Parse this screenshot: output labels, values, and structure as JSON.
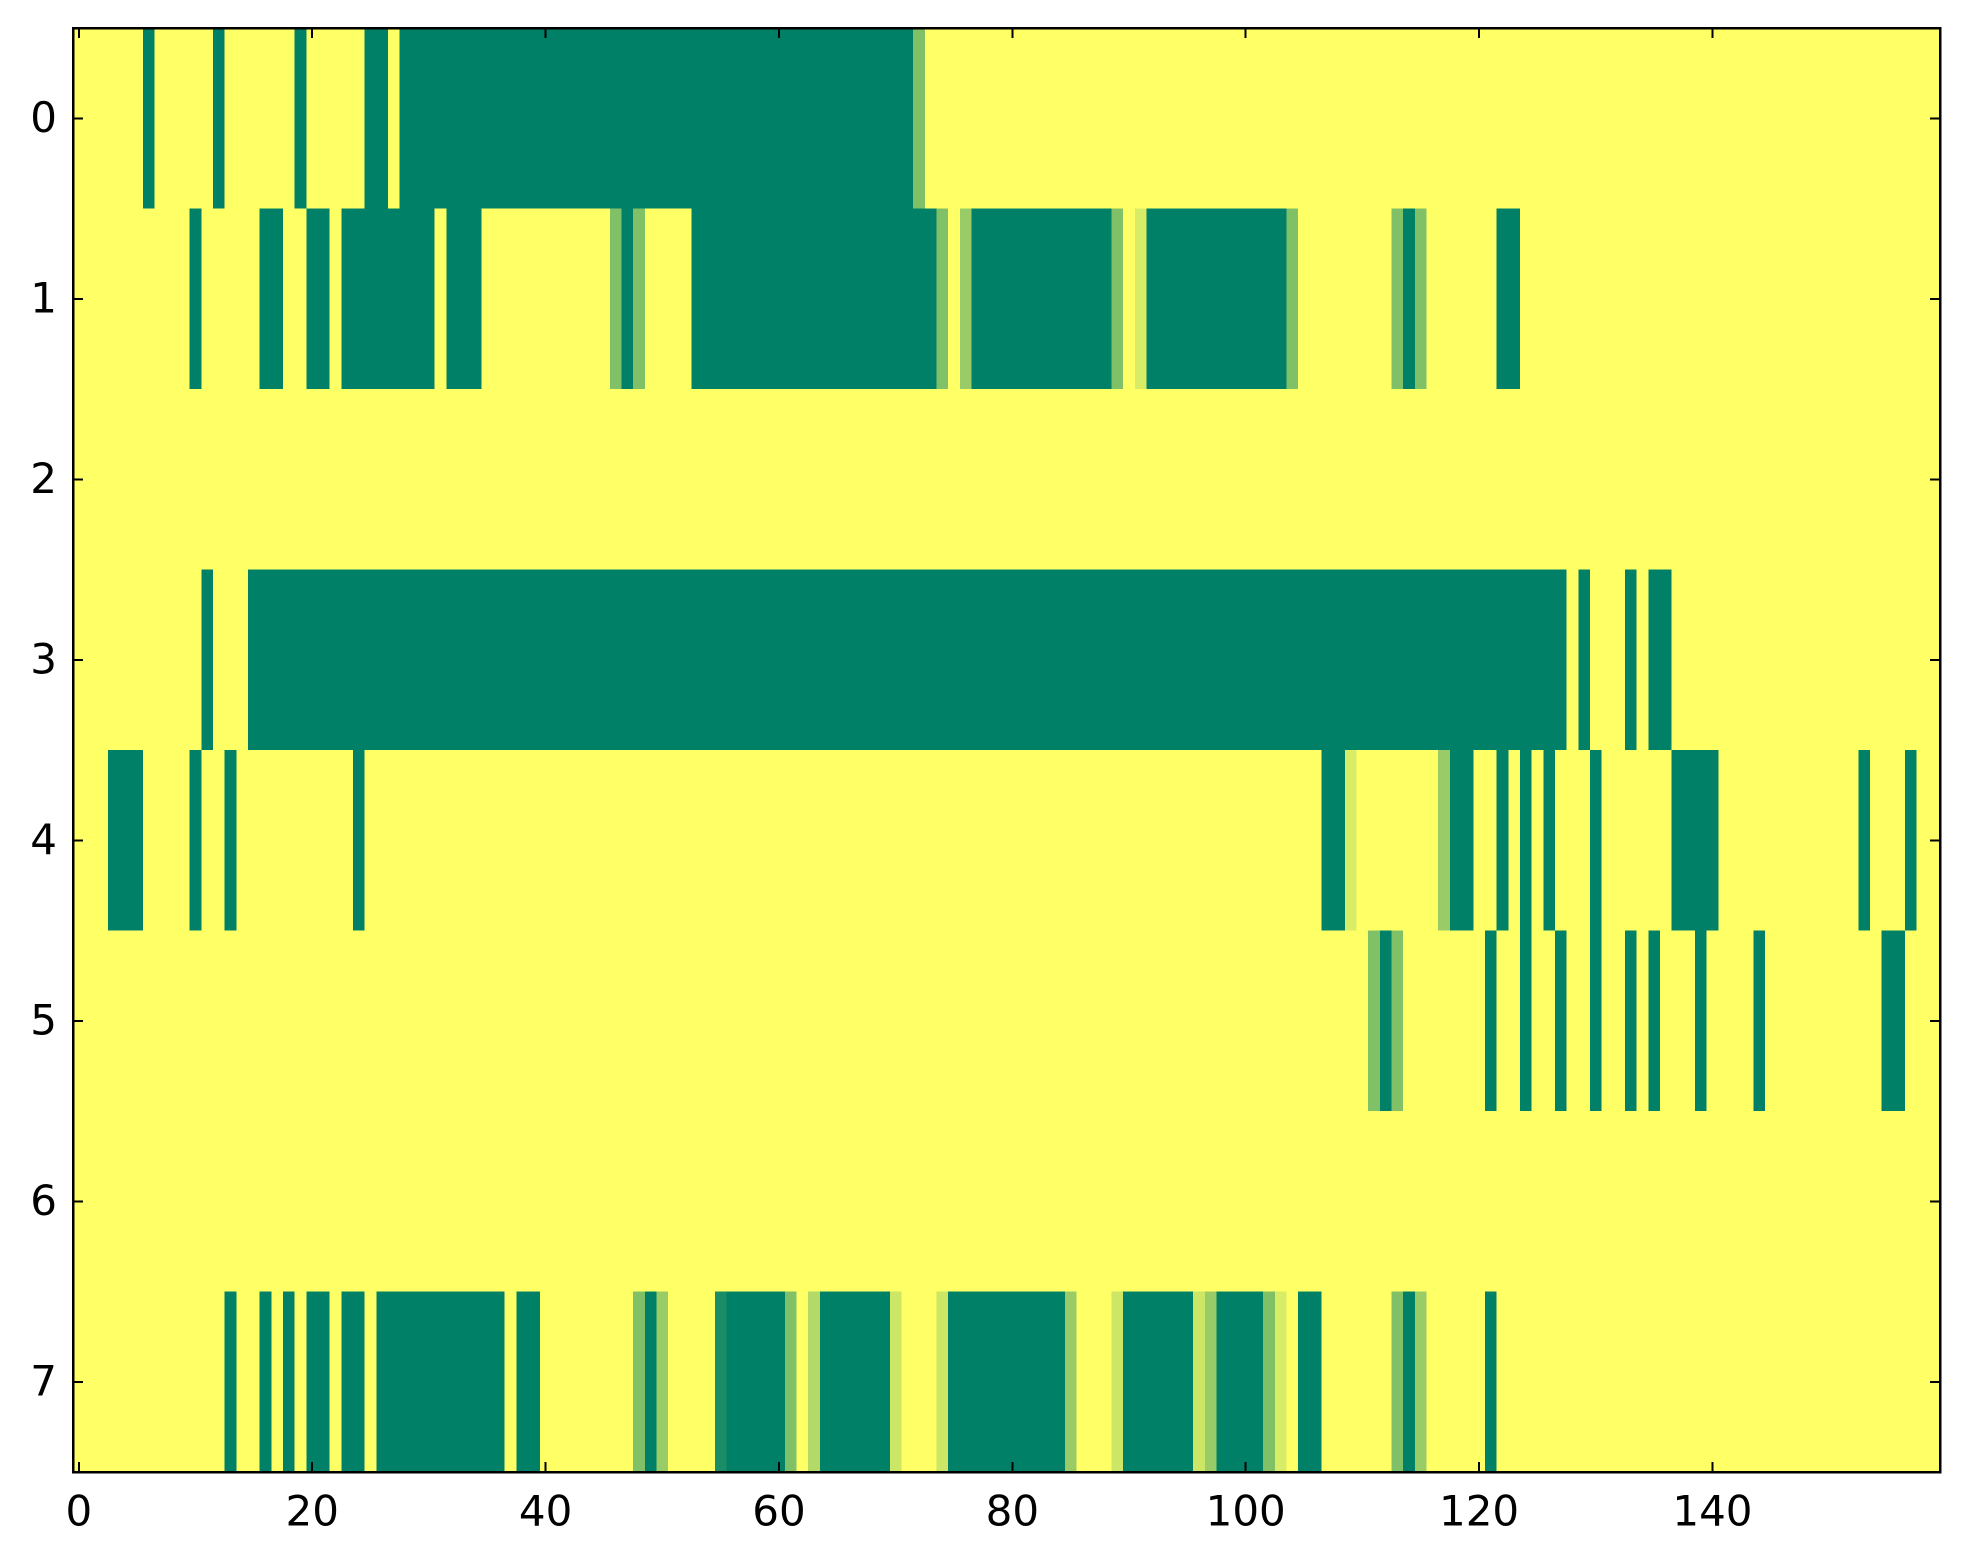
{
  "chart_data": {
    "type": "heatmap",
    "values": [
      [
        1,
        1,
        1,
        1,
        1,
        1,
        0,
        1,
        1,
        1,
        1,
        1,
        0,
        1,
        1,
        1,
        1,
        1,
        1,
        0,
        1,
        1,
        1,
        1,
        1,
        0,
        0,
        1,
        0,
        0,
        0,
        0,
        0,
        0,
        0,
        0,
        0,
        0,
        0,
        0,
        0,
        0,
        0,
        0,
        0,
        0,
        0,
        0,
        0,
        0,
        0,
        0,
        0,
        0,
        0,
        0,
        0,
        0,
        0,
        0,
        0,
        0,
        0,
        0,
        0,
        0,
        0,
        0,
        0,
        0,
        0,
        0,
        0.5,
        1,
        1,
        1,
        1,
        1,
        1,
        1,
        1,
        1,
        1,
        1,
        1,
        1,
        1,
        1,
        1,
        1,
        1,
        1,
        1,
        1,
        1,
        1,
        1,
        1,
        1,
        1,
        1,
        1,
        1,
        1,
        1,
        1,
        1,
        1,
        1,
        1,
        1,
        1,
        1,
        1,
        1,
        1,
        1,
        1,
        1,
        1,
        1,
        1,
        1,
        1,
        1,
        1,
        1,
        1,
        1,
        1,
        1,
        1,
        1,
        1,
        1,
        1,
        1,
        1,
        1,
        1,
        1,
        1,
        1,
        1,
        1,
        1,
        1,
        1,
        1,
        1,
        1,
        1,
        1,
        1,
        1,
        1,
        1,
        1,
        1,
        1
      ],
      [
        1,
        1,
        1,
        1,
        1,
        1,
        1,
        1,
        1,
        1,
        0,
        1,
        1,
        1,
        1,
        1,
        0,
        0,
        1,
        1,
        0,
        0,
        1,
        0,
        0,
        0,
        0,
        0,
        0,
        0,
        0,
        1,
        0,
        0,
        0,
        1,
        1,
        1,
        1,
        1,
        1,
        1,
        1,
        1,
        1,
        1,
        0.5,
        0,
        0.5,
        1,
        1,
        1,
        1,
        0,
        0,
        0,
        0,
        0,
        0,
        0,
        0,
        0,
        0,
        0,
        0,
        0,
        0,
        0,
        0,
        0,
        0,
        0,
        0,
        0,
        0.5,
        1,
        0.6,
        0,
        0,
        0,
        0,
        0,
        0,
        0,
        0,
        0,
        0,
        0,
        0,
        0.5,
        1,
        0.85,
        0,
        0,
        0,
        0,
        0,
        0,
        0,
        0,
        0,
        0,
        0,
        0,
        0.5,
        1,
        1,
        1,
        1,
        1,
        1,
        1,
        1,
        0.5,
        0,
        0.5,
        1,
        1,
        1,
        1,
        1,
        1,
        0,
        0,
        1,
        1,
        1,
        1,
        1,
        1,
        1,
        1,
        1,
        1,
        1,
        1,
        1,
        1,
        1,
        1,
        1,
        1,
        1,
        1,
        1,
        1,
        1,
        1,
        1,
        1,
        1,
        1,
        1,
        1,
        1,
        1,
        1,
        1,
        1,
        1
      ],
      [
        1,
        1,
        1,
        1,
        1,
        1,
        1,
        1,
        1,
        1,
        1,
        1,
        1,
        1,
        1,
        1,
        1,
        1,
        1,
        1,
        1,
        1,
        1,
        1,
        1,
        1,
        1,
        1,
        1,
        1,
        1,
        1,
        1,
        1,
        1,
        1,
        1,
        1,
        1,
        1,
        1,
        1,
        1,
        1,
        1,
        1,
        1,
        1,
        1,
        1,
        1,
        1,
        1,
        1,
        1,
        1,
        1,
        1,
        1,
        1,
        1,
        1,
        1,
        1,
        1,
        1,
        1,
        1,
        1,
        1,
        1,
        1,
        1,
        1,
        1,
        1,
        1,
        1,
        1,
        1,
        1,
        1,
        1,
        1,
        1,
        1,
        1,
        1,
        1,
        1,
        1,
        1,
        1,
        1,
        1,
        1,
        1,
        1,
        1,
        1,
        1,
        1,
        1,
        1,
        1,
        1,
        1,
        1,
        1,
        1,
        1,
        1,
        1,
        1,
        1,
        1,
        1,
        1,
        1,
        1,
        1,
        1,
        1,
        1,
        1,
        1,
        1,
        1,
        1,
        1,
        1,
        1,
        1,
        1,
        1,
        1,
        1,
        1,
        1,
        1,
        1,
        1,
        1,
        1,
        1,
        1,
        1,
        1,
        1,
        1,
        1,
        1,
        1,
        1,
        1,
        1,
        1,
        1,
        1,
        1
      ],
      [
        1,
        1,
        1,
        1,
        1,
        1,
        1,
        1,
        1,
        1,
        1,
        0,
        1,
        1,
        1,
        0,
        0,
        0,
        0,
        0,
        0,
        0,
        0,
        0,
        0,
        0,
        0,
        0,
        0,
        0,
        0,
        0,
        0,
        0,
        0,
        0,
        0,
        0,
        0,
        0,
        0,
        0,
        0,
        0,
        0,
        0,
        0,
        0,
        0,
        0,
        0,
        0,
        0,
        0,
        0,
        0,
        0,
        0,
        0,
        0,
        0,
        0,
        0,
        0,
        0,
        0,
        0,
        0,
        0,
        0,
        0,
        0,
        0,
        0,
        0,
        0,
        0,
        0,
        0,
        0,
        0,
        0,
        0,
        0,
        0,
        0,
        0,
        0,
        0,
        0,
        0,
        0,
        0,
        0,
        0,
        0,
        0,
        0,
        0,
        0,
        0,
        0,
        0,
        0,
        0,
        0,
        0,
        0,
        0,
        0,
        0,
        0,
        0,
        0,
        0,
        0,
        0,
        0,
        0,
        0,
        0,
        0,
        0,
        0,
        0,
        0,
        0,
        0,
        1,
        0,
        1,
        1,
        1,
        0,
        1,
        0,
        0,
        1,
        1,
        1,
        1,
        1,
        1,
        1,
        1,
        1,
        1,
        1,
        1,
        1,
        1,
        1,
        1,
        1,
        1,
        1,
        1,
        1,
        1,
        1
      ],
      [
        1,
        1,
        1,
        0,
        0,
        0,
        1,
        1,
        1,
        1,
        0,
        1,
        1,
        0,
        1,
        1,
        1,
        1,
        1,
        1,
        1,
        1,
        1,
        1,
        0,
        1,
        1,
        1,
        1,
        1,
        1,
        1,
        1,
        1,
        1,
        1,
        1,
        1,
        1,
        1,
        1,
        1,
        1,
        1,
        1,
        1,
        1,
        1,
        1,
        1,
        1,
        1,
        1,
        1,
        1,
        1,
        1,
        1,
        1,
        1,
        1,
        1,
        1,
        1,
        1,
        1,
        1,
        1,
        1,
        1,
        1,
        1,
        1,
        1,
        1,
        1,
        1,
        1,
        1,
        1,
        1,
        1,
        1,
        1,
        1,
        1,
        1,
        1,
        1,
        1,
        1,
        1,
        1,
        1,
        1,
        1,
        1,
        1,
        1,
        1,
        1,
        1,
        1,
        1,
        1,
        1,
        1,
        0,
        0,
        0.85,
        1,
        1,
        1,
        1,
        1,
        1,
        1,
        0.6,
        0,
        0,
        1,
        1,
        0,
        1,
        0,
        1,
        0,
        1,
        1,
        1,
        0,
        1,
        1,
        1,
        1,
        1,
        1,
        0,
        0,
        0,
        0,
        1,
        1,
        1,
        1,
        1,
        1,
        1,
        1,
        1,
        1,
        1,
        1,
        0,
        1,
        1,
        1,
        0,
        1,
        1
      ],
      [
        1,
        1,
        1,
        1,
        1,
        1,
        1,
        1,
        1,
        1,
        1,
        1,
        1,
        1,
        1,
        1,
        1,
        1,
        1,
        1,
        1,
        1,
        1,
        1,
        1,
        1,
        1,
        1,
        1,
        1,
        1,
        1,
        1,
        1,
        1,
        1,
        1,
        1,
        1,
        1,
        1,
        1,
        1,
        1,
        1,
        1,
        1,
        1,
        1,
        1,
        1,
        1,
        1,
        1,
        1,
        1,
        1,
        1,
        1,
        1,
        1,
        1,
        1,
        1,
        1,
        1,
        1,
        1,
        1,
        1,
        1,
        1,
        1,
        1,
        1,
        1,
        1,
        1,
        1,
        1,
        1,
        1,
        1,
        1,
        1,
        1,
        1,
        1,
        1,
        1,
        1,
        1,
        1,
        1,
        1,
        1,
        1,
        1,
        1,
        1,
        1,
        1,
        1,
        1,
        1,
        1,
        1,
        1,
        1,
        1,
        1,
        0.5,
        0,
        0.5,
        1,
        1,
        1,
        1,
        1,
        1,
        1,
        0,
        1,
        1,
        0,
        1,
        1,
        0,
        1,
        1,
        0,
        1,
        1,
        0,
        1,
        0,
        1,
        1,
        1,
        0,
        1,
        1,
        1,
        1,
        0,
        1,
        1,
        1,
        1,
        1,
        1,
        1,
        1,
        1,
        1,
        0,
        0,
        1,
        1,
        1
      ],
      [
        1,
        1,
        1,
        1,
        1,
        1,
        1,
        1,
        1,
        1,
        1,
        1,
        1,
        1,
        1,
        1,
        1,
        1,
        1,
        1,
        1,
        1,
        1,
        1,
        1,
        1,
        1,
        1,
        1,
        1,
        1,
        1,
        1,
        1,
        1,
        1,
        1,
        1,
        1,
        1,
        1,
        1,
        1,
        1,
        1,
        1,
        1,
        1,
        1,
        1,
        1,
        1,
        1,
        1,
        1,
        1,
        1,
        1,
        1,
        1,
        1,
        1,
        1,
        1,
        1,
        1,
        1,
        1,
        1,
        1,
        1,
        1,
        1,
        1,
        1,
        1,
        1,
        1,
        1,
        1,
        1,
        1,
        1,
        1,
        1,
        1,
        1,
        1,
        1,
        1,
        1,
        1,
        1,
        1,
        1,
        1,
        1,
        1,
        1,
        1,
        1,
        1,
        1,
        1,
        1,
        1,
        1,
        1,
        1,
        1,
        1,
        1,
        1,
        1,
        1,
        1,
        1,
        1,
        1,
        1,
        1,
        1,
        1,
        1,
        1,
        1,
        1,
        1,
        1,
        1,
        1,
        1,
        1,
        1,
        1,
        1,
        1,
        1,
        1,
        1,
        1,
        1,
        1,
        1,
        1,
        1,
        1,
        1,
        1,
        1,
        1,
        1,
        1,
        1,
        1,
        1,
        1,
        1,
        1,
        1
      ],
      [
        1,
        1,
        1,
        1,
        1,
        1,
        1,
        1,
        1,
        1,
        1,
        1,
        1,
        0,
        1,
        1,
        0,
        1,
        0,
        1,
        0,
        0,
        1,
        0,
        0,
        1,
        0,
        0,
        0,
        0,
        0,
        0,
        0,
        0,
        0,
        0,
        0,
        1,
        0,
        0,
        1,
        1,
        1,
        1,
        1,
        1,
        1,
        1,
        0.5,
        0,
        0.6,
        1,
        1,
        1,
        1,
        0.1,
        0,
        0,
        0,
        0,
        0,
        0.5,
        1,
        0.7,
        0,
        0,
        0,
        0,
        0,
        0,
        0.8,
        1,
        1,
        1,
        0.8,
        0,
        0,
        0,
        0,
        0,
        0,
        0,
        0,
        0,
        0,
        0.6,
        1,
        1,
        1,
        0.8,
        0,
        0,
        0,
        0,
        0,
        0,
        0.8,
        0.6,
        0,
        0,
        0,
        0,
        0.5,
        0.85,
        1,
        0,
        0,
        1,
        1,
        1,
        1,
        1,
        1,
        0.5,
        0,
        0.6,
        1,
        1,
        1,
        1,
        1,
        0,
        1,
        1,
        1,
        1,
        1,
        1,
        1,
        1,
        1,
        1,
        1,
        1,
        1,
        1,
        1,
        1,
        1,
        1,
        1,
        1,
        1,
        1,
        1,
        1,
        1,
        1,
        1,
        1,
        1,
        1,
        1,
        1,
        1,
        1,
        1,
        1,
        1,
        1
      ]
    ],
    "colors": [
      "#008066",
      "#ffff66"
    ],
    "clim": [
      0,
      1
    ],
    "xlim": [
      -0.5,
      159.5
    ],
    "ylim": [
      7.5,
      -0.5
    ],
    "xticks": [
      0,
      20,
      40,
      60,
      80,
      100,
      120,
      140
    ],
    "yticks": [
      0,
      1,
      2,
      3,
      4,
      5,
      6,
      7
    ]
  }
}
